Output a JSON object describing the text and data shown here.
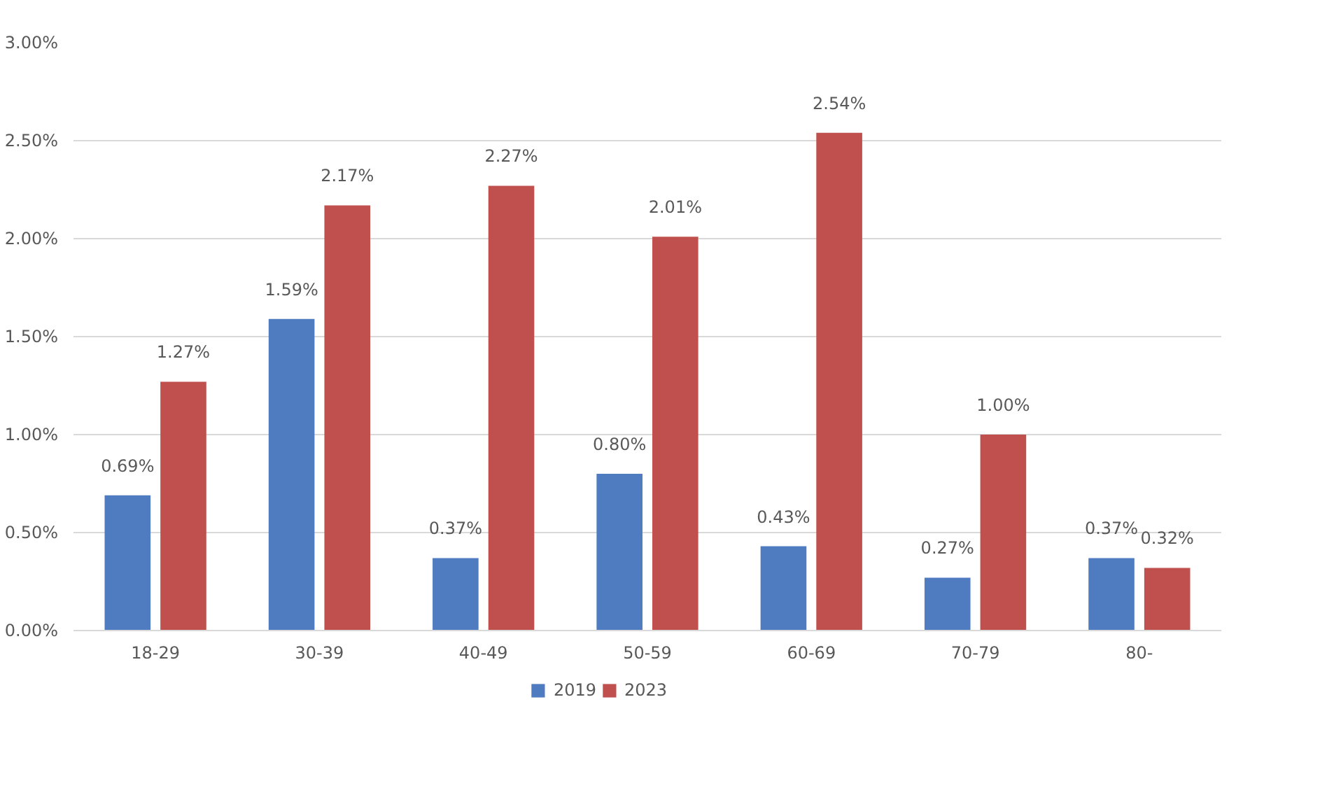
{
  "chart_data": {
    "type": "bar",
    "categories": [
      "18-29",
      "30-39",
      "40-49",
      "50-59",
      "60-69",
      "70-79",
      "80-"
    ],
    "series": [
      {
        "name": "2019",
        "color": "#4f7bc1",
        "values": [
          0.69,
          1.59,
          0.37,
          0.8,
          0.43,
          0.27,
          0.37
        ],
        "value_labels": [
          "0.69%",
          "1.59%",
          "0.37%",
          "0.80%",
          "0.43%",
          "0.27%",
          "0.37%"
        ]
      },
      {
        "name": "2023",
        "color": "#c0504d",
        "values": [
          1.27,
          2.17,
          2.27,
          2.01,
          2.54,
          1.0,
          0.32
        ],
        "value_labels": [
          "1.27%",
          "2.17%",
          "2.27%",
          "2.01%",
          "2.54%",
          "1.00%",
          "0.32%"
        ]
      }
    ],
    "ylim": [
      0,
      3
    ],
    "yticks": [
      {
        "value": 0,
        "label": "0.00%"
      },
      {
        "value": 0.5,
        "label": "0.50%"
      },
      {
        "value": 1,
        "label": "1.00%"
      },
      {
        "value": 1.5,
        "label": "1.50%"
      },
      {
        "value": 2,
        "label": "2.00%"
      },
      {
        "value": 2.5,
        "label": "2.50%"
      },
      {
        "value": 3,
        "label": "3.00%"
      }
    ],
    "grid": "y",
    "legend": "bottom"
  }
}
